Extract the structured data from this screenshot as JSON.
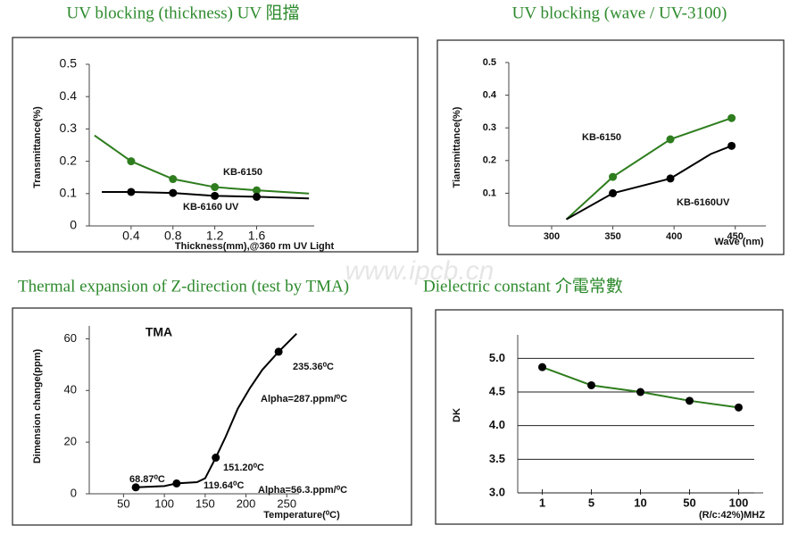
{
  "watermark": "www.ipcb.cn",
  "chart_data": [
    {
      "type": "line",
      "title": "UV blocking (thickness) UV 阻擋",
      "y_label": "Transmittance(%)",
      "x_label": "Thickness(mm),@360 rm UV Light",
      "xlim": [
        0,
        2.15
      ],
      "ylim": [
        0,
        0.5
      ],
      "xticks": [
        0.4,
        0.8,
        1.2,
        1.6
      ],
      "yticks": [
        0,
        0.1,
        0.2,
        0.3,
        0.4,
        0.5
      ],
      "series": [
        {
          "name": "KB-6150",
          "color": "#2e7d1e",
          "x": [
            0.05,
            0.4,
            0.8,
            1.2,
            1.6,
            2.1
          ],
          "values": [
            0.28,
            0.2,
            0.145,
            0.12,
            0.11,
            0.1
          ],
          "markers": [
            false,
            true,
            true,
            true,
            true,
            false
          ]
        },
        {
          "name": "KB-6160 UV",
          "color": "#000000",
          "x": [
            0.12,
            0.4,
            0.8,
            1.2,
            1.6,
            2.1
          ],
          "values": [
            0.105,
            0.105,
            0.102,
            0.093,
            0.09,
            0.085
          ],
          "markers": [
            false,
            true,
            true,
            true,
            true,
            false
          ]
        }
      ]
    },
    {
      "type": "line",
      "title": "UV blocking    (wave / UV-3100)",
      "y_label": "Tiansmittance(%)",
      "x_label": "Wave (nm)",
      "xlim": [
        265,
        475
      ],
      "ylim": [
        0,
        0.5
      ],
      "xticks": [
        300,
        350,
        400,
        450
      ],
      "yticks": [
        0.1,
        0.2,
        0.3,
        0.4,
        0.5
      ],
      "series": [
        {
          "name": "KB-6150",
          "color": "#2e7d1e",
          "x": [
            312,
            350,
            397,
            447
          ],
          "values": [
            0.02,
            0.15,
            0.265,
            0.33
          ],
          "markers": [
            false,
            true,
            true,
            true
          ]
        },
        {
          "name": "KB-6160UV",
          "color": "#000000",
          "x": [
            312,
            350,
            397,
            430,
            447
          ],
          "values": [
            0.02,
            0.1,
            0.145,
            0.22,
            0.245
          ],
          "markers": [
            false,
            true,
            true,
            false,
            true
          ]
        }
      ]
    },
    {
      "type": "line",
      "title": "Thermal expansion of Z-direction (test by TMA)",
      "subtitle": "TMA",
      "y_label": "Dimension change(ppm)",
      "x_label": "Temperature(⁰C)",
      "xlim": [
        8,
        265
      ],
      "ylim": [
        0,
        65
      ],
      "xticks": [
        50,
        100,
        150,
        200,
        250
      ],
      "yticks": [
        0,
        20,
        40,
        60
      ],
      "annotations": [
        "68.87⁰C",
        "119.64⁰C",
        "151.20⁰C",
        "235.36⁰C",
        "Alpha=287.ppm/⁰C",
        "Alpha=56.3.ppm/⁰C"
      ],
      "series": [
        {
          "color": "#000000",
          "x": [
            65,
            100,
            115,
            140,
            150,
            163,
            175,
            190,
            205,
            220,
            240,
            262
          ],
          "values": [
            2.5,
            3,
            4,
            4.5,
            6,
            14,
            22,
            33,
            41,
            48,
            55,
            62
          ],
          "markers": [
            true,
            false,
            true,
            false,
            false,
            true,
            false,
            false,
            false,
            false,
            true,
            false
          ]
        }
      ]
    },
    {
      "type": "line",
      "title": "Dielectric constant    介電常數",
      "y_label": "DK",
      "x_label": "(R/c:42%)MHZ",
      "categories": [
        "1",
        "5",
        "10",
        "50",
        "100"
      ],
      "ylim": [
        3,
        5.35
      ],
      "grid": true,
      "yticks": [
        {
          "value": 3,
          "label": "3.0"
        },
        3.5,
        {
          "value": 4,
          "label": "4.0"
        },
        4.5,
        {
          "value": 5,
          "label": "5.0"
        }
      ],
      "series": [
        {
          "color": "#2e7d1e",
          "marker_color": "#000000",
          "values": [
            4.87,
            4.6,
            4.5,
            4.37,
            4.27
          ],
          "markers": [
            true,
            true,
            true,
            true,
            true
          ]
        }
      ]
    }
  ]
}
